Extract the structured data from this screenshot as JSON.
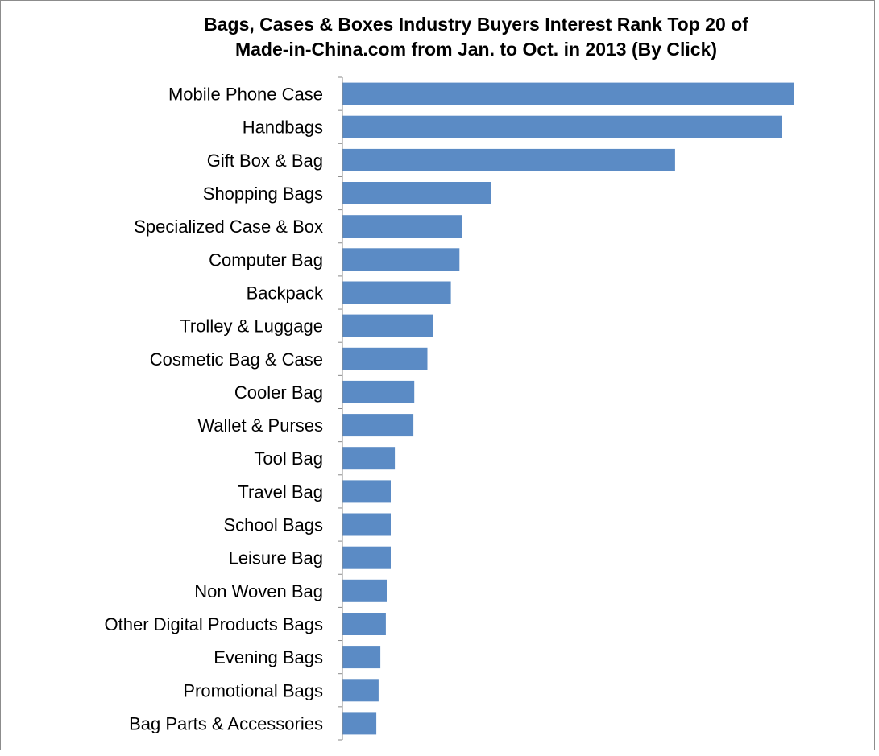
{
  "chart_data": {
    "type": "bar",
    "orientation": "horizontal",
    "title": "Bags, Cases & Boxes Industry Buyers Interest Rank Top 20 of\nMade-in-China.com from Jan. to Oct. in 2013 (By Click)",
    "categories": [
      "Mobile Phone Case",
      "Handbags",
      "Gift Box & Bag",
      "Shopping Bags",
      "Specialized Case & Box",
      "Computer Bag",
      "Backpack",
      "Trolley & Luggage",
      "Cosmetic Bag & Case",
      "Cooler Bag",
      "Wallet & Purses",
      "Tool Bag",
      "Travel Bag",
      "School Bags",
      "Leisure Bag",
      "Non Woven Bag",
      "Other Digital Products Bags",
      "Evening Bags",
      "Promotional Bags",
      "Bag Parts & Accessories"
    ],
    "values": [
      100,
      97.3,
      73.6,
      32.9,
      26.5,
      25.9,
      24.0,
      20.0,
      18.8,
      15.9,
      15.7,
      11.6,
      10.7,
      10.7,
      10.7,
      9.8,
      9.6,
      8.4,
      8.0,
      7.5
    ],
    "xlabel": "",
    "ylabel": "",
    "xlim": [
      0,
      100
    ],
    "grid": false,
    "legend": "none",
    "colors": {
      "bar": "#5b8bc5",
      "axis": "#888888",
      "text": "#000000"
    }
  }
}
